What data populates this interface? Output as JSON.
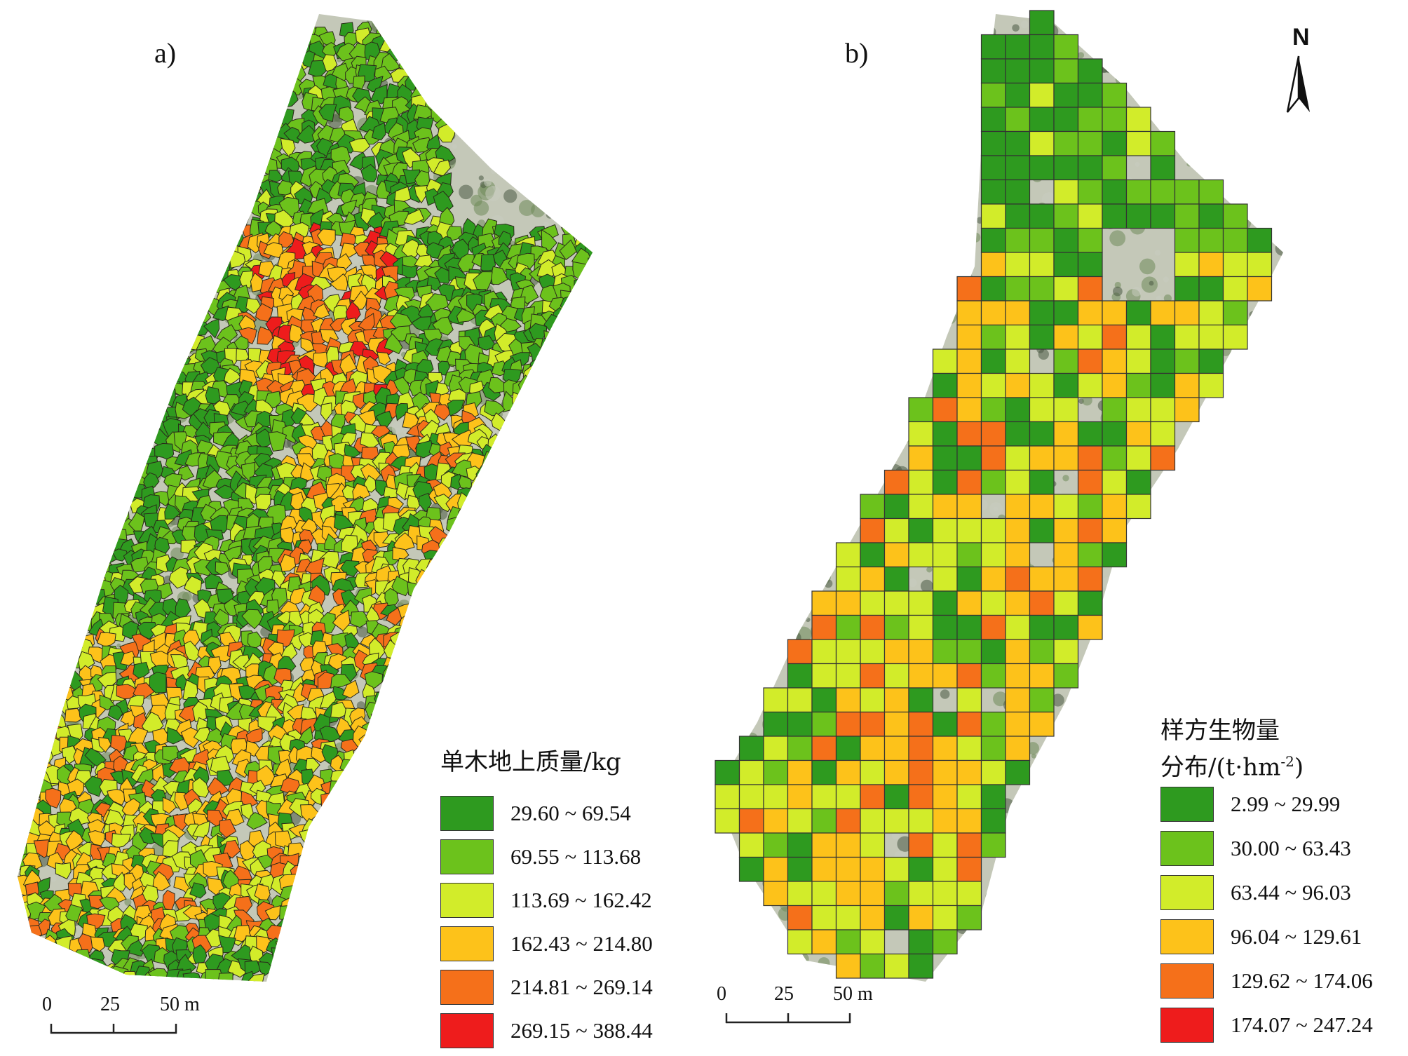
{
  "panels": [
    {
      "label": "a)",
      "legend_title": "单木地上质量/kg",
      "legend": [
        {
          "range": "29.60 ~ 69.54",
          "color": "#2e9a1f"
        },
        {
          "range": "69.55 ~ 113.68",
          "color": "#6cc21c"
        },
        {
          "range": "113.69 ~ 162.42",
          "color": "#d2ec2a"
        },
        {
          "range": "162.43 ~ 214.80",
          "color": "#fdc21a"
        },
        {
          "range": "214.81 ~ 269.14",
          "color": "#f5701a"
        },
        {
          "range": "269.15 ~ 388.44",
          "color": "#ee1c1c"
        }
      ],
      "scale_bar": {
        "ticks": [
          "0",
          "25",
          "50 m"
        ]
      }
    },
    {
      "label": "b)",
      "legend_title_line1": "样方生物量",
      "legend_title_line2_prefix": "分布/(t·hm",
      "legend_title_line2_sup": "-2",
      "legend_title_line2_suffix": ")",
      "legend": [
        {
          "range": "2.99 ~ 29.99",
          "color": "#2e9a1f"
        },
        {
          "range": "30.00 ~ 63.43",
          "color": "#6cc21c"
        },
        {
          "range": "63.44 ~ 96.03",
          "color": "#d2ec2a"
        },
        {
          "range": "96.04 ~ 129.61",
          "color": "#fdc21a"
        },
        {
          "range": "129.62 ~ 174.06",
          "color": "#f5701a"
        },
        {
          "range": "174.07 ~ 247.24",
          "color": "#ee1c1c"
        }
      ],
      "scale_bar": {
        "ticks": [
          "0",
          "25",
          "50 m"
        ]
      },
      "north_arrow": "N"
    }
  ],
  "imagery_colors": {
    "ground": "#c9ccbf",
    "vegetation": "#6f8a5a",
    "shadow": "#4a5a44"
  }
}
